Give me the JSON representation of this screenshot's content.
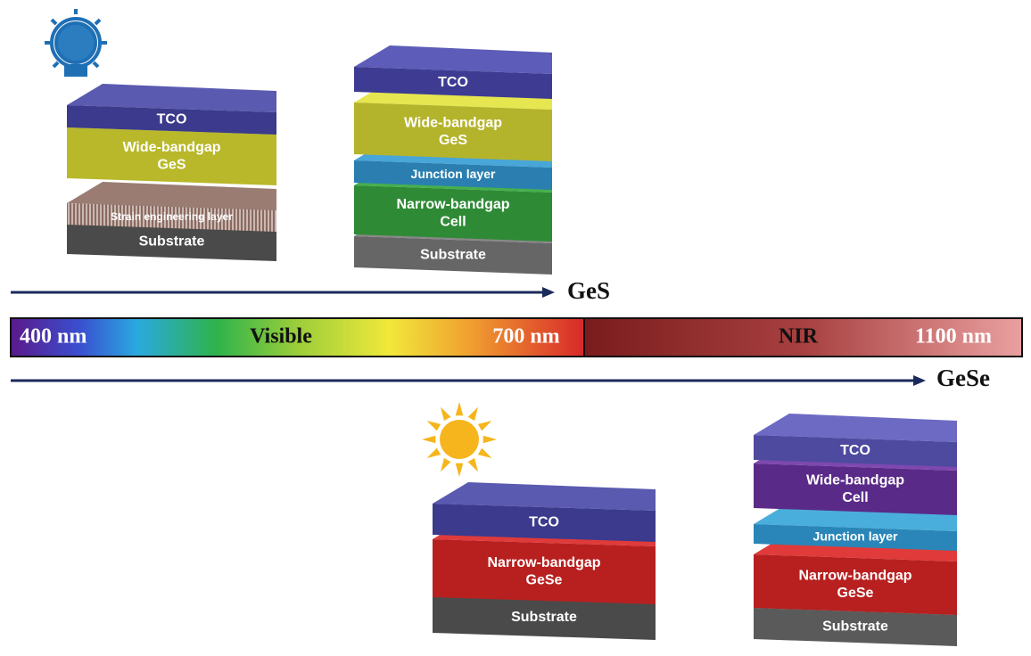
{
  "stacks": [
    {
      "layers": [
        {
          "lines": [
            "TCO"
          ]
        },
        {
          "lines": [
            "Wide-bandgap",
            "GeS"
          ]
        },
        {
          "lines": [
            "Strain engineering layer"
          ]
        },
        {
          "lines": [
            "Substrate"
          ]
        }
      ]
    },
    {
      "layers": [
        {
          "lines": [
            "TCO"
          ]
        },
        {
          "lines": [
            "Wide-bandgap",
            "GeS"
          ]
        },
        {
          "lines": [
            "Junction layer"
          ]
        },
        {
          "lines": [
            "Narrow-bandgap",
            "Cell"
          ]
        },
        {
          "lines": [
            "Substrate"
          ]
        }
      ]
    },
    {
      "layers": [
        {
          "lines": [
            "TCO"
          ]
        },
        {
          "lines": [
            "Narrow-bandgap",
            "GeSe"
          ]
        },
        {
          "lines": [
            "Substrate"
          ]
        }
      ]
    },
    {
      "layers": [
        {
          "lines": [
            "TCO"
          ]
        },
        {
          "lines": [
            "Wide-bandgap",
            "Cell"
          ]
        },
        {
          "lines": [
            "Junction layer"
          ]
        },
        {
          "lines": [
            "Narrow-bandgap",
            "GeSe"
          ]
        },
        {
          "lines": [
            "Substrate"
          ]
        }
      ]
    }
  ],
  "spectrum": {
    "start": "400 nm",
    "visible": "Visible",
    "mid": "700 nm",
    "nir": "NIR",
    "end": "1100 nm"
  },
  "arrows": {
    "top": "GeS",
    "bottom": "GeSe"
  }
}
